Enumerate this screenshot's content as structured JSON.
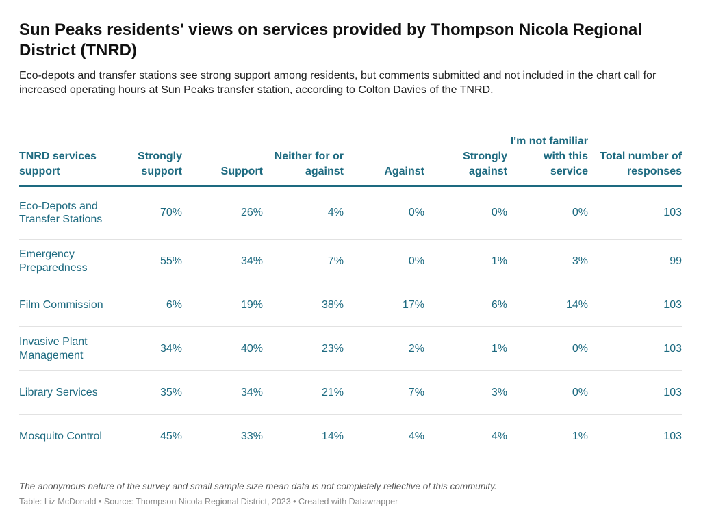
{
  "title": "Sun Peaks residents' views on services provided by Thompson Nicola Regional District (TNRD)",
  "subtitle": "Eco-depots and transfer stations see strong support among residents, but comments submitted and not included in the chart call for increased operating hours at Sun Peaks transfer station, according to Colton Davies of the TNRD.",
  "colors": {
    "table_text": "#1d6a80",
    "header_rule": "#1d6a80",
    "row_rule": "#e2e2e2"
  },
  "chart_data": {
    "type": "table",
    "columns": [
      "TNRD services support",
      "Strongly support",
      "Support",
      "Neither for or against",
      "Against",
      "Strongly against",
      "I'm not familiar with this service",
      "Total number of responses"
    ],
    "rows": [
      [
        "Eco-Depots and Transfer Stations",
        "70%",
        "26%",
        "4%",
        "0%",
        "0%",
        "0%",
        "103"
      ],
      [
        "Emergency Preparedness",
        "55%",
        "34%",
        "7%",
        "0%",
        "1%",
        "3%",
        "99"
      ],
      [
        "Film Commission",
        "6%",
        "19%",
        "38%",
        "17%",
        "6%",
        "14%",
        "103"
      ],
      [
        "Invasive Plant Management",
        "34%",
        "40%",
        "23%",
        "2%",
        "1%",
        "0%",
        "103"
      ],
      [
        "Library Services",
        "35%",
        "34%",
        "21%",
        "7%",
        "3%",
        "0%",
        "103"
      ],
      [
        "Mosquito Control",
        "45%",
        "33%",
        "14%",
        "4%",
        "4%",
        "1%",
        "103"
      ]
    ]
  },
  "footer": {
    "note": "The anonymous nature of the survey and small sample size mean data is not completely reflective of this community.",
    "byline": "Table: Liz McDonald • Source: Thompson Nicola Regional District, 2023 • Created with Datawrapper"
  }
}
